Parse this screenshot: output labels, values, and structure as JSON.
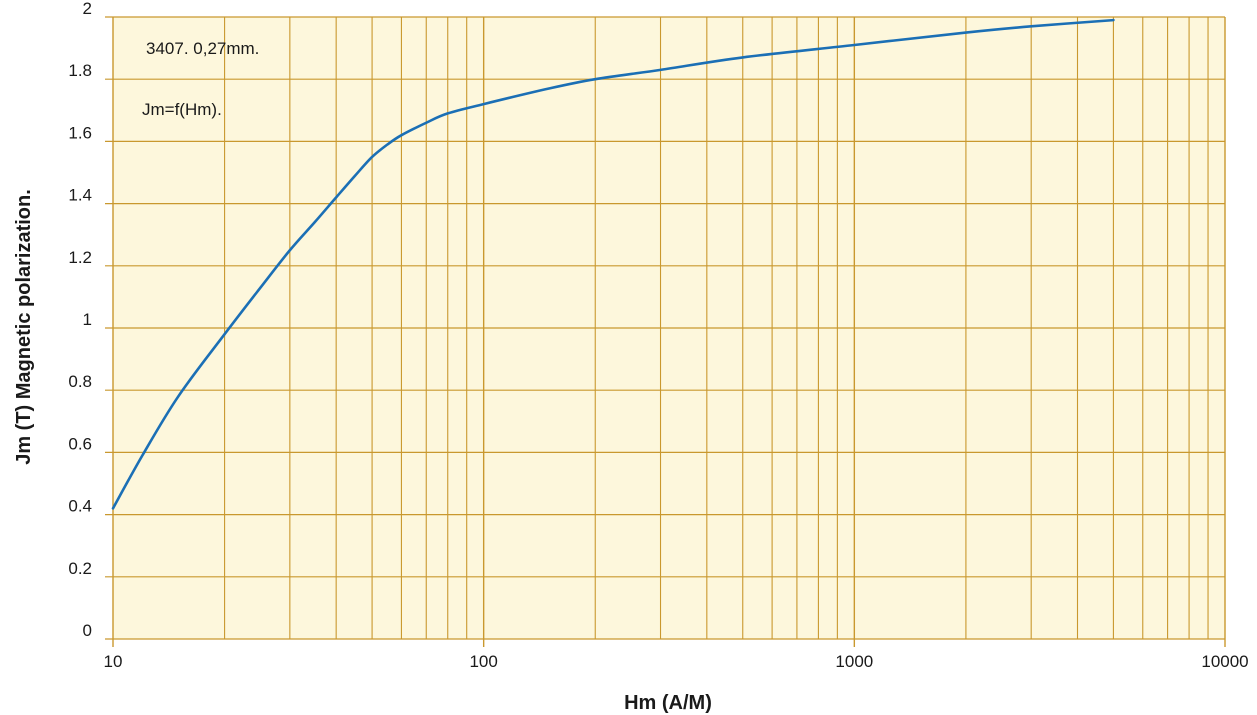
{
  "chart_data": {
    "type": "line",
    "title": "",
    "xlabel": "Hm (A/M)",
    "ylabel": "Jm (T) Magnetic polarization.",
    "x_scale": "log",
    "xlim": [
      10,
      10000
    ],
    "ylim": [
      0,
      2
    ],
    "x_ticks": [
      "10",
      "100",
      "1000",
      "10000"
    ],
    "y_ticks": [
      "0",
      "0.2",
      "0.4",
      "0.6",
      "0.8",
      "1",
      "1.2",
      "1.4",
      "1.6",
      "1.8",
      "2"
    ],
    "grid": true,
    "annotations": [
      "3407. 0,27mm.",
      "Jm=f(Hm)."
    ],
    "series": [
      {
        "x": [
          10,
          12,
          15,
          20,
          25,
          30,
          35,
          40,
          45,
          50,
          55,
          60,
          70,
          80,
          100,
          150,
          200,
          300,
          500,
          1000,
          2000,
          3000,
          5000
        ],
        "y": [
          0.42,
          0.59,
          0.78,
          0.98,
          1.13,
          1.25,
          1.34,
          1.42,
          1.49,
          1.55,
          1.59,
          1.62,
          1.66,
          1.69,
          1.72,
          1.77,
          1.8,
          1.83,
          1.87,
          1.91,
          1.95,
          1.97,
          1.99
        ]
      }
    ]
  },
  "colors": {
    "plot_bg": "#fdf7dc",
    "grid": "#c9982e",
    "curve": "#1b6fb5"
  }
}
